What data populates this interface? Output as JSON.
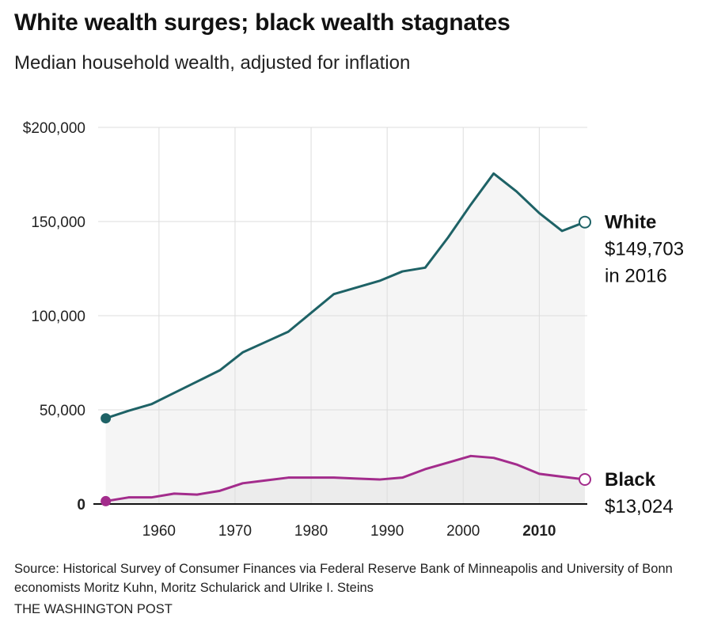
{
  "header": {
    "title": "White wealth surges; black wealth stagnates",
    "subtitle": "Median household wealth, adjusted for inflation"
  },
  "footer": {
    "source": "Source: Historical Survey of Consumer Finances via Federal Reserve Bank of Minneapolis and University of Bonn economists Moritz Kuhn, Moritz Schularick and Ulrike I. Steins",
    "credit": "THE WASHINGTON POST"
  },
  "colors": {
    "white_series": "#1e6266",
    "black_series": "#a32c8c",
    "area_fill": "#f5f5f5",
    "area_fill_lower": "#ececec",
    "grid": "#dddddd"
  },
  "chart_data": {
    "type": "line",
    "title": "White wealth surges; black wealth stagnates",
    "subtitle": "Median household wealth, adjusted for inflation",
    "xlabel": "",
    "ylabel": "",
    "xlim": [
      1952,
      2016
    ],
    "ylim": [
      0,
      200000
    ],
    "x_ticks": [
      {
        "value": 1960,
        "label": "1960",
        "bold": false
      },
      {
        "value": 1970,
        "label": "1970",
        "bold": false
      },
      {
        "value": 1980,
        "label": "1980",
        "bold": false
      },
      {
        "value": 1990,
        "label": "1990",
        "bold": false
      },
      {
        "value": 2000,
        "label": "2000",
        "bold": false
      },
      {
        "value": 2010,
        "label": "2010",
        "bold": true
      }
    ],
    "y_ticks": [
      {
        "value": 0,
        "label": "0",
        "bold": true
      },
      {
        "value": 50000,
        "label": "50,000",
        "bold": false
      },
      {
        "value": 100000,
        "label": "100,000",
        "bold": false
      },
      {
        "value": 150000,
        "label": "150,000",
        "bold": false
      },
      {
        "value": 200000,
        "label": "$200,000",
        "bold": false
      }
    ],
    "grid": true,
    "series": [
      {
        "name": "White",
        "end_value_label": "$149,703",
        "end_year_label": "in 2016",
        "x": [
          1953,
          1956,
          1959,
          1962,
          1965,
          1968,
          1971,
          1974,
          1977,
          1980,
          1983,
          1986,
          1989,
          1992,
          1995,
          1998,
          2001,
          2004,
          2007,
          2010,
          2013,
          2016
        ],
        "values": [
          45500,
          49500,
          53000,
          59000,
          65000,
          71000,
          80500,
          86000,
          91500,
          101500,
          111500,
          115000,
          118500,
          123500,
          125500,
          141500,
          159000,
          175500,
          166000,
          154500,
          145000,
          149703
        ]
      },
      {
        "name": "Black",
        "end_value_label": "$13,024",
        "end_year_label": "",
        "x": [
          1953,
          1956,
          1959,
          1962,
          1965,
          1968,
          1971,
          1974,
          1977,
          1980,
          1983,
          1986,
          1989,
          1992,
          1995,
          1998,
          2001,
          2004,
          2007,
          2010,
          2013,
          2016
        ],
        "values": [
          1500,
          3500,
          3500,
          5500,
          5000,
          7000,
          11000,
          12500,
          14000,
          14000,
          14000,
          13500,
          13000,
          14000,
          18500,
          22000,
          25500,
          24500,
          21000,
          16000,
          14500,
          13024
        ]
      }
    ]
  }
}
